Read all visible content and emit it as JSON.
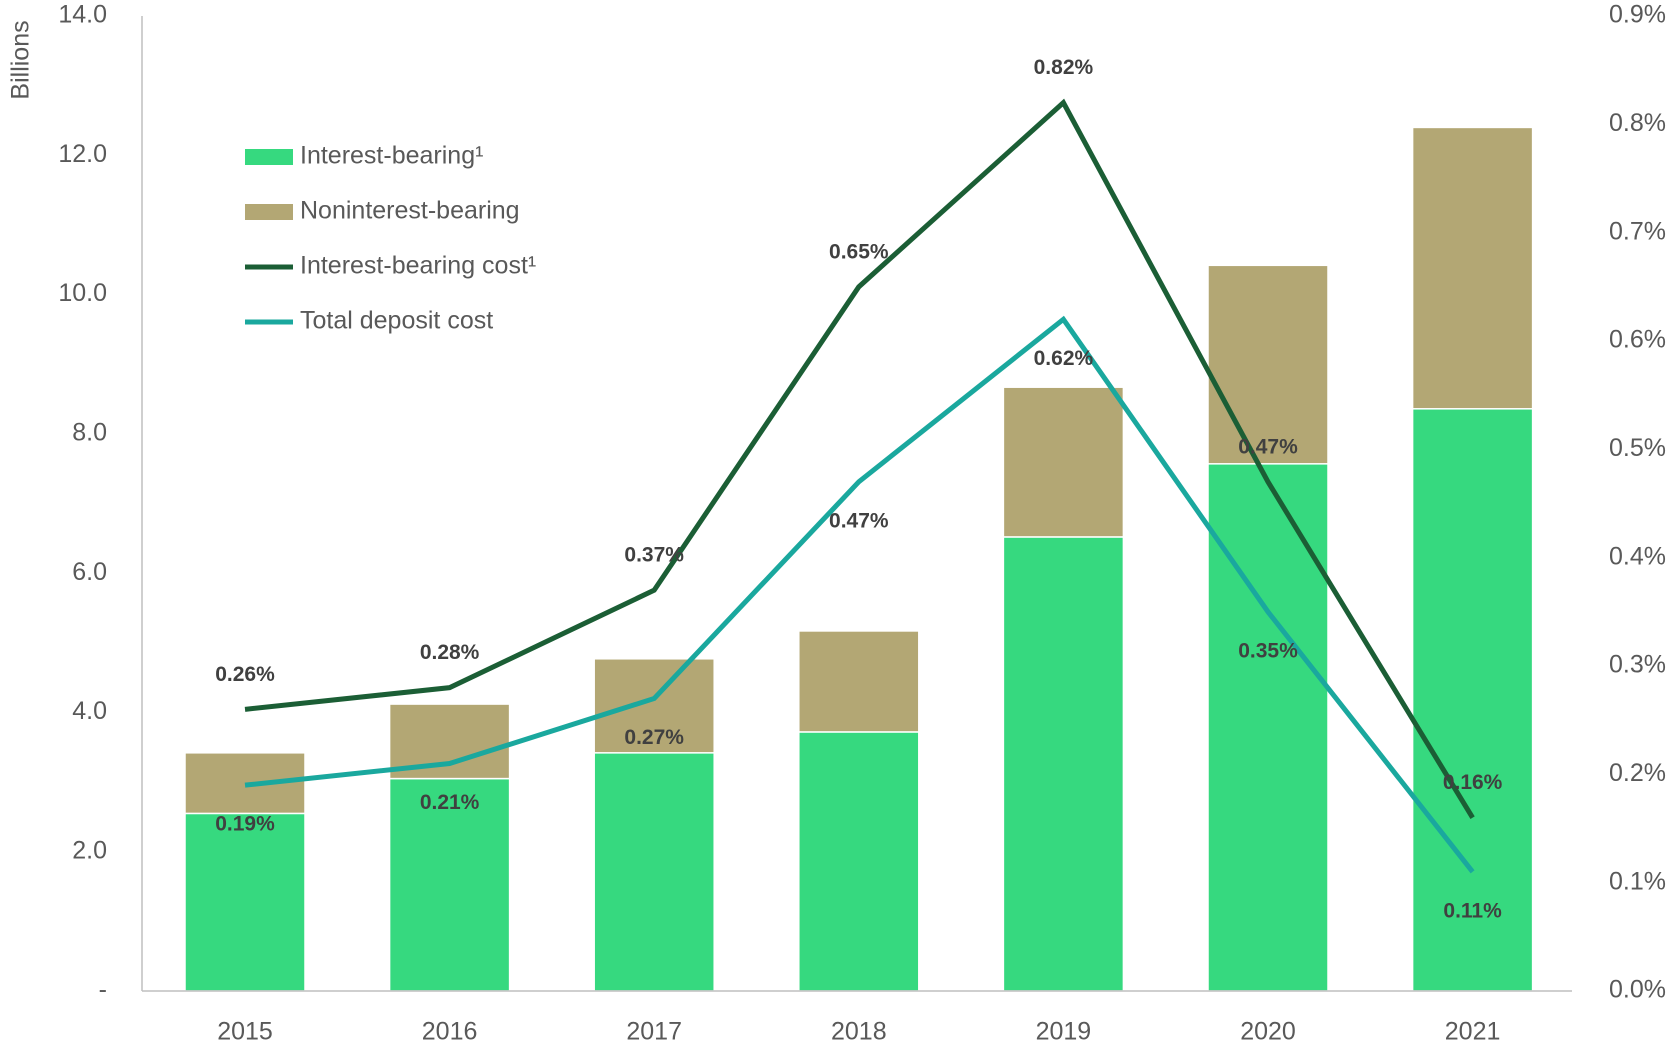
{
  "chart_data": {
    "type": "bar-line",
    "y_axis_label": "Billions",
    "categories": [
      "2015",
      "2016",
      "2017",
      "2018",
      "2019",
      "2020",
      "2021"
    ],
    "series": [
      {
        "name": "Interest-bearing¹",
        "type": "bar",
        "color": "#36d97f",
        "values": [
          2.55,
          3.05,
          3.42,
          3.72,
          6.52,
          7.57,
          8.36
        ]
      },
      {
        "name": "Noninterest-bearing",
        "type": "bar",
        "color": "#b3a774",
        "values": [
          0.87,
          1.07,
          1.35,
          1.45,
          2.15,
          2.85,
          4.04
        ]
      },
      {
        "name": "Interest-bearing cost¹",
        "type": "line",
        "axis": "y2",
        "color": "#1b5e35",
        "values": [
          0.26,
          0.28,
          0.37,
          0.65,
          0.82,
          0.47,
          0.16
        ],
        "value_labels": [
          "0.26%",
          "0.28%",
          "0.37%",
          "0.65%",
          "0.82%",
          "0.47%",
          "0.16%"
        ]
      },
      {
        "name": "Total deposit cost",
        "type": "line",
        "axis": "y2",
        "color": "#1aa89e",
        "values": [
          0.19,
          0.21,
          0.27,
          0.47,
          0.62,
          0.35,
          0.11
        ],
        "value_labels": [
          "0.19%",
          "0.21%",
          "0.27%",
          "0.47%",
          "0.62%",
          "0.35%",
          "0.11%"
        ]
      }
    ],
    "ylim": [
      0,
      14
    ],
    "yticks": [
      {
        "value": 0,
        "label": "-"
      },
      {
        "value": 2,
        "label": "2.0"
      },
      {
        "value": 4,
        "label": "4.0"
      },
      {
        "value": 6,
        "label": "6.0"
      },
      {
        "value": 8,
        "label": "8.0"
      },
      {
        "value": 10,
        "label": "10.0"
      },
      {
        "value": 12,
        "label": "12.0"
      },
      {
        "value": 14,
        "label": "14.0"
      }
    ],
    "y2lim": [
      0,
      0.9
    ],
    "y2ticks": [
      {
        "value": 0,
        "label": "0.0%"
      },
      {
        "value": 0.1,
        "label": "0.1%"
      },
      {
        "value": 0.2,
        "label": "0.2%"
      },
      {
        "value": 0.3,
        "label": "0.3%"
      },
      {
        "value": 0.4,
        "label": "0.4%"
      },
      {
        "value": 0.5,
        "label": "0.5%"
      },
      {
        "value": 0.6,
        "label": "0.6%"
      },
      {
        "value": 0.7,
        "label": "0.7%"
      },
      {
        "value": 0.8,
        "label": "0.8%"
      },
      {
        "value": 0.9,
        "label": "0.9%"
      }
    ],
    "grid": false,
    "legend": "upper left"
  }
}
